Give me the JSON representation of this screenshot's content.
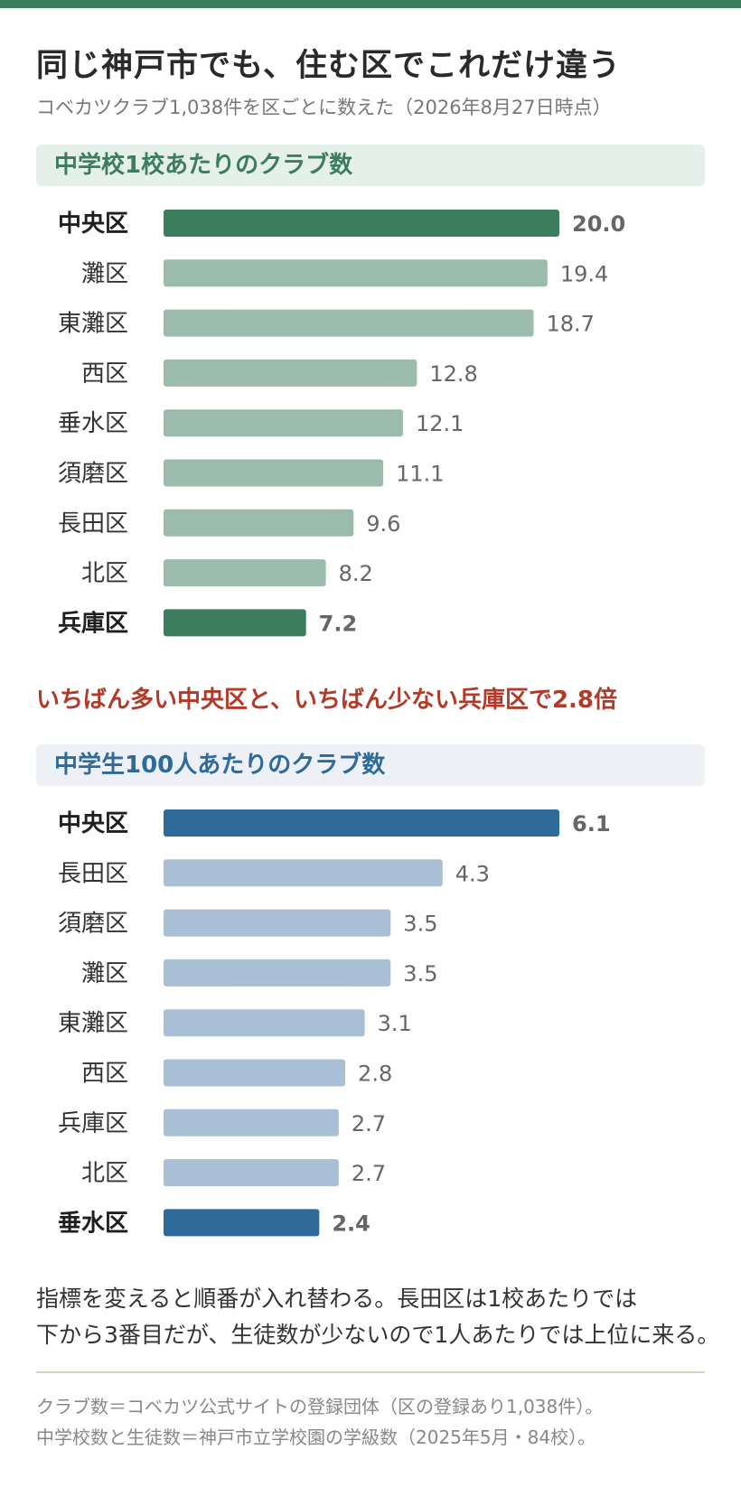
{
  "header": {
    "title": "同じ神戸市でも、住む区でこれだけ違う",
    "subtitle": "コベカツクラブ1,038件を区ごとに数えた（2026年8月27日時点）"
  },
  "colors": {
    "green": "#3c7d5d",
    "green_light": "#9bbcad",
    "blue": "#2e6a9a",
    "blue_light": "#a8bfd6",
    "red": "#b23a28"
  },
  "chart_data": [
    {
      "type": "bar",
      "orientation": "horizontal",
      "title": "中学校1校あたりのクラブ数",
      "categories": [
        "中央区",
        "灘区",
        "東灘区",
        "西区",
        "垂水区",
        "須磨区",
        "長田区",
        "北区",
        "兵庫区"
      ],
      "values": [
        20.0,
        19.4,
        18.7,
        12.8,
        12.1,
        11.1,
        9.6,
        8.2,
        7.2
      ],
      "labels": [
        "20.0",
        "19.4",
        "18.7",
        "12.8",
        "12.1",
        "11.1",
        "9.6",
        "8.2",
        "7.2"
      ],
      "highlight": [
        "中央区",
        "兵庫区"
      ],
      "xlim": [
        0,
        20.0
      ]
    },
    {
      "type": "bar",
      "orientation": "horizontal",
      "title": "中学生100人あたりのクラブ数",
      "categories": [
        "中央区",
        "長田区",
        "須磨区",
        "灘区",
        "東灘区",
        "西区",
        "兵庫区",
        "北区",
        "垂水区"
      ],
      "values": [
        6.1,
        4.3,
        3.5,
        3.5,
        3.1,
        2.8,
        2.7,
        2.7,
        2.4
      ],
      "labels": [
        "6.1",
        "4.3",
        "3.5",
        "3.5",
        "3.1",
        "2.8",
        "2.7",
        "2.7",
        "2.4"
      ],
      "highlight": [
        "中央区",
        "垂水区"
      ],
      "xlim": [
        0,
        6.1
      ]
    }
  ],
  "callout": "いちばん多い中央区と、いちばん少ない兵庫区で2.8倍",
  "note": {
    "line1": "指標を変えると順番が入れ替わる。長田区は1校あたりでは",
    "line2": "下から3番目だが、生徒数が少ないので1人あたりでは上位に来る。"
  },
  "footer": {
    "line1": "クラブ数＝コベカツ公式サイトの登録団体（区の登録あり1,038件）。",
    "line2": "中学校数と生徒数＝神戸市立学校園の学級数（2025年5月・84校）。"
  }
}
